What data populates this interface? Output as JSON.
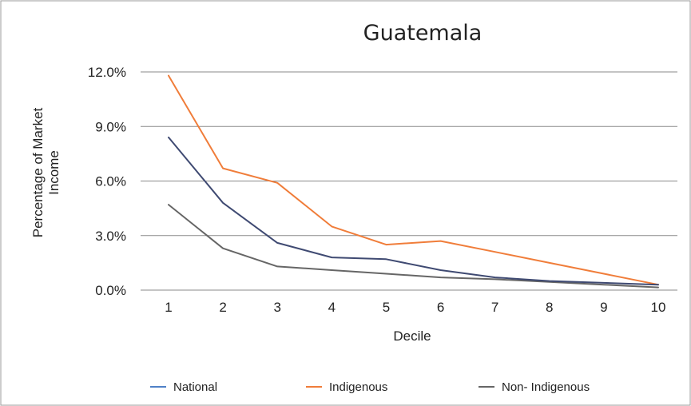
{
  "chart_data": {
    "type": "line",
    "title": "Guatemala",
    "xlabel": "Decile",
    "ylabel_lines": [
      "Percentage of Market",
      "Income"
    ],
    "x": [
      1,
      2,
      3,
      4,
      5,
      6,
      7,
      8,
      9,
      10
    ],
    "x_tick_labels": [
      "1",
      "2",
      "3",
      "4",
      "5",
      "6",
      "7",
      "8",
      "9",
      "10"
    ],
    "y_ticks": [
      0,
      3,
      6,
      9,
      12
    ],
    "y_tick_labels": [
      "0.0%",
      "3.0%",
      "6.0%",
      "9.0%",
      "12.0%"
    ],
    "ylim": [
      0,
      12
    ],
    "grid": true,
    "legend_position": "bottom",
    "series": [
      {
        "name": "National",
        "color": "#3f4a72",
        "legend_color": "#4f81c7",
        "values": [
          8.4,
          4.8,
          2.6,
          1.8,
          1.7,
          1.1,
          0.7,
          0.5,
          0.4,
          0.3
        ]
      },
      {
        "name": "Indigenous",
        "color": "#f07d3a",
        "legend_color": "#f07d3a",
        "values": [
          11.8,
          6.7,
          5.9,
          3.5,
          2.5,
          2.7,
          2.1,
          1.5,
          0.9,
          0.3
        ]
      },
      {
        "name": "Non- Indigenous",
        "color": "#666666",
        "legend_color": "#666666",
        "values": [
          4.7,
          2.3,
          1.3,
          1.1,
          0.9,
          0.7,
          0.6,
          0.45,
          0.3,
          0.15
        ]
      }
    ]
  }
}
